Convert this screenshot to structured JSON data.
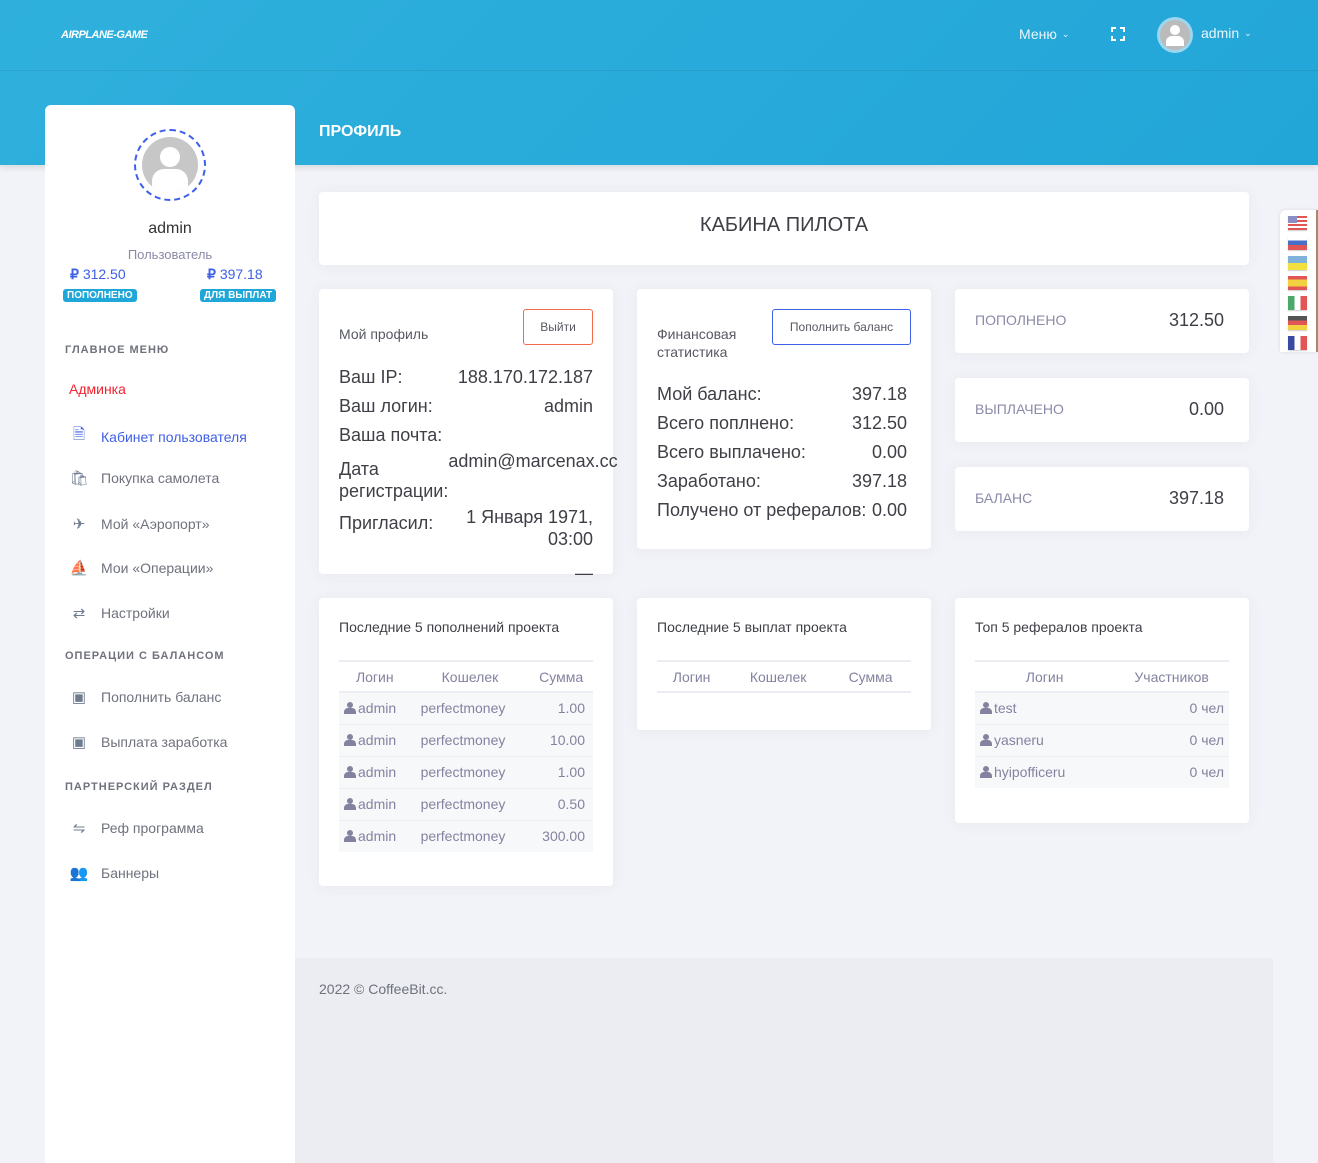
{
  "header": {
    "logo": "AIRPLANE-GAME",
    "menu_label": "Меню",
    "user_label": "admin"
  },
  "page_title": "ПРОФИЛЬ",
  "sidebar": {
    "username": "admin",
    "role": "Пользователь",
    "deposited": "312.50",
    "deposited_badge": "ПОПОЛНЕНО",
    "withdrawable": "397.18",
    "withdrawable_badge": "ДЛЯ ВЫПЛАТ",
    "currency": "₽",
    "sections": [
      "ГЛАВНОЕ МЕНЮ",
      "ОПЕРАЦИИ С БАЛАНСОМ",
      "ПАРТНЕРСКИЙ РАЗДЕЛ"
    ],
    "items": [
      {
        "label": "Админка"
      },
      {
        "label": "Кабинет пользователя",
        "icon": "id-card-icon"
      },
      {
        "label": "Покупка самолета",
        "icon": "shopping-bag-icon"
      },
      {
        "label": "Мой «Аэропорт»",
        "icon": "plane-icon"
      },
      {
        "label": "Мои «Операции»",
        "icon": "ship-icon"
      },
      {
        "label": "Настройки",
        "icon": "exchange-icon"
      },
      {
        "label": "Пополнить баланс",
        "icon": "inbox-in-icon"
      },
      {
        "label": "Выплата заработка",
        "icon": "inbox-out-icon"
      },
      {
        "label": "Реф программа",
        "icon": "handshake-icon"
      },
      {
        "label": "Баннеры",
        "icon": "users-icon"
      }
    ]
  },
  "cockpit_title": "КАБИНА ПИЛОТА",
  "profile": {
    "title": "Мой профиль",
    "logout": "Выйти",
    "ip_label": "Ваш IP:",
    "ip": "188.170.172.187",
    "login_label": "Ваш логин:",
    "login": "admin",
    "email_label": "Ваша почта:",
    "email": "admin@marcenax.cc",
    "reg_label": "Дата регистрации:",
    "reg": "1 Января 1971, 03:00",
    "ref_label": "Пригласил:",
    "ref": "—"
  },
  "finance": {
    "title": "Финансовая статистика",
    "button": "Пополнить баланс",
    "rows": [
      {
        "label": "Мой баланс:",
        "value": "397.18"
      },
      {
        "label": "Всего поплнено:",
        "value": "312.50"
      },
      {
        "label": "Всего выплачено:",
        "value": "0.00"
      },
      {
        "label": "Заработано:",
        "value": "397.18"
      },
      {
        "label": "Получено от рефералов:",
        "value": "0.00"
      }
    ]
  },
  "stats": [
    {
      "label": "ПОПОЛНЕНО",
      "value": "312.50"
    },
    {
      "label": "ВЫПЛАЧЕНО",
      "value": "0.00"
    },
    {
      "label": "БАЛАНС",
      "value": "397.18"
    }
  ],
  "deposits": {
    "title": "Последние 5 пополнений проекта",
    "headers": [
      "Логин",
      "Кошелек",
      "Сумма"
    ],
    "rows": [
      [
        "admin",
        "perfectmoney",
        "1.00"
      ],
      [
        "admin",
        "perfectmoney",
        "10.00"
      ],
      [
        "admin",
        "perfectmoney",
        "1.00"
      ],
      [
        "admin",
        "perfectmoney",
        "0.50"
      ],
      [
        "admin",
        "perfectmoney",
        "300.00"
      ]
    ]
  },
  "payouts": {
    "title": "Последние 5 выплат проекта",
    "headers": [
      "Логин",
      "Кошелек",
      "Сумма"
    ]
  },
  "referrals": {
    "title": "Топ 5 рефералов проекта",
    "headers": [
      "Логин",
      "Участников"
    ],
    "rows": [
      [
        "test",
        "0 чел"
      ],
      [
        "yasneru",
        "0 чел"
      ],
      [
        "hyipofficeru",
        "0 чел"
      ]
    ]
  },
  "footer": "2022 © CoffeeBit.cc.",
  "colors": {
    "header": "#2bace0",
    "accent": "#3e5fe8",
    "badge": "#1ea7d8",
    "admin_link": "#f4212e"
  }
}
